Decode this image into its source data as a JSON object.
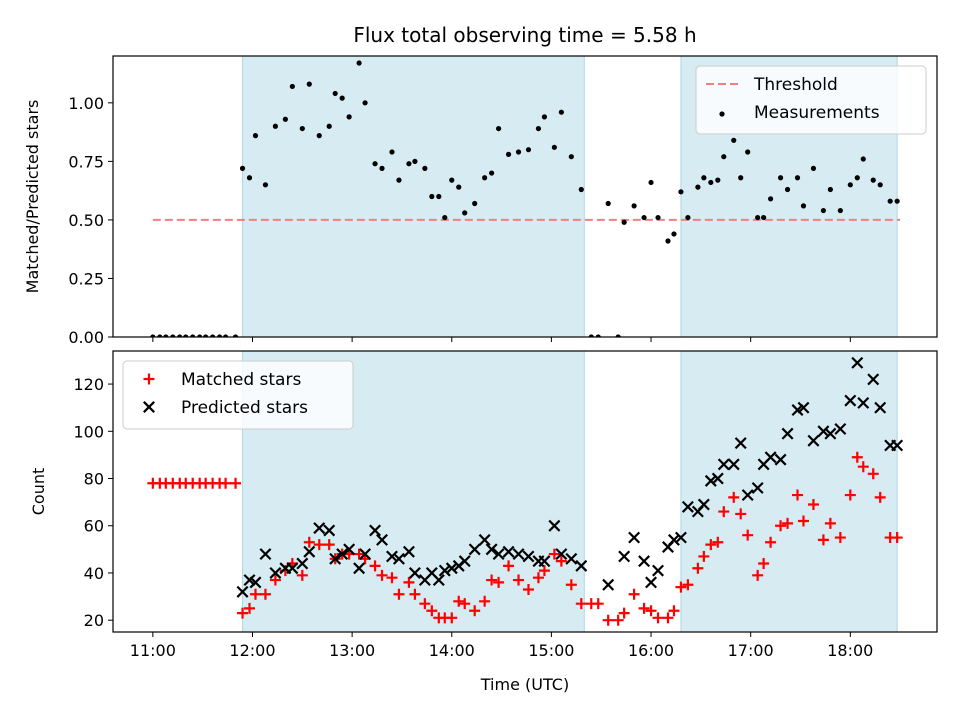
{
  "chart_data": [
    {
      "type": "scatter",
      "title": "Flux total observing time = 5.58 h",
      "xlabel": "",
      "ylabel": "Matched/Predicted stars",
      "ylim": [
        0,
        1.2
      ],
      "yticks": [
        "0.00",
        "0.25",
        "0.50",
        "0.75",
        "1.00"
      ],
      "ytick_values": [
        0,
        0.25,
        0.5,
        0.75,
        1.0
      ],
      "xlim": [
        10.6,
        18.87
      ],
      "threshold": 0.5,
      "shaded_intervals": [
        [
          11.9,
          15.33
        ],
        [
          16.3,
          18.47
        ]
      ],
      "legend_placement": "top-right",
      "legend": [
        {
          "label": "Threshold",
          "marker": "dashed-line",
          "color": "#f08080"
        },
        {
          "label": "Measurements",
          "marker": "dot",
          "color": "#000000"
        }
      ],
      "series": [
        {
          "name": "Measurements",
          "x": [
            11.0,
            11.07,
            11.13,
            11.2,
            11.27,
            11.33,
            11.4,
            11.47,
            11.53,
            11.6,
            11.67,
            11.73,
            11.83,
            11.9,
            11.97,
            12.03,
            12.13,
            12.23,
            12.33,
            12.4,
            12.5,
            12.57,
            12.67,
            12.77,
            12.83,
            12.9,
            12.97,
            13.07,
            13.13,
            13.23,
            13.3,
            13.4,
            13.47,
            13.57,
            13.63,
            13.73,
            13.8,
            13.87,
            13.93,
            14.0,
            14.07,
            14.13,
            14.23,
            14.33,
            14.4,
            14.47,
            14.57,
            14.67,
            14.77,
            14.87,
            14.93,
            15.03,
            15.1,
            15.2,
            15.3,
            15.4,
            15.47,
            15.57,
            15.67,
            15.73,
            15.83,
            15.93,
            16.0,
            16.07,
            16.17,
            16.23,
            16.3,
            16.37,
            16.47,
            16.53,
            16.6,
            16.67,
            16.73,
            16.83,
            16.9,
            16.97,
            17.07,
            17.13,
            17.2,
            17.3,
            17.37,
            17.47,
            17.53,
            17.63,
            17.73,
            17.8,
            17.9,
            18.0,
            18.07,
            18.13,
            18.23,
            18.3,
            18.4,
            18.47
          ],
          "y": [
            0,
            0,
            0,
            0,
            0,
            0,
            0,
            0,
            0,
            0,
            0,
            0,
            0,
            0.72,
            0.68,
            0.86,
            0.65,
            0.9,
            0.93,
            1.07,
            0.89,
            1.08,
            0.86,
            0.9,
            1.04,
            1.02,
            0.94,
            1.17,
            1.0,
            0.74,
            0.72,
            0.79,
            0.67,
            0.74,
            0.75,
            0.72,
            0.6,
            0.6,
            0.51,
            0.67,
            0.64,
            0.53,
            0.57,
            0.68,
            0.7,
            0.89,
            0.78,
            0.79,
            0.8,
            0.89,
            0.94,
            0.81,
            0.96,
            0.77,
            0.63,
            0,
            0,
            0.57,
            0,
            0.49,
            0.56,
            0.51,
            0.66,
            0.51,
            0.41,
            0.44,
            0.62,
            0.51,
            0.64,
            0.68,
            0.66,
            0.67,
            0.77,
            0.84,
            0.68,
            0.79,
            0.51,
            0.51,
            0.59,
            0.68,
            0.63,
            0.68,
            0.56,
            0.72,
            0.54,
            0.63,
            0.54,
            0.65,
            0.68,
            0.76,
            0.67,
            0.65,
            0.58,
            0.58
          ]
        }
      ]
    },
    {
      "type": "scatter",
      "title": "",
      "xlabel": "Time (UTC)",
      "ylabel": "Count",
      "ylim": [
        15,
        134
      ],
      "yticks": [
        "20",
        "40",
        "60",
        "80",
        "100",
        "120"
      ],
      "ytick_values": [
        20,
        40,
        60,
        80,
        100,
        120
      ],
      "xlim": [
        10.6,
        18.87
      ],
      "xticks": [
        "11:00",
        "12:00",
        "13:00",
        "14:00",
        "15:00",
        "16:00",
        "17:00",
        "18:00"
      ],
      "xtick_values": [
        11,
        12,
        13,
        14,
        15,
        16,
        17,
        18
      ],
      "shaded_intervals": [
        [
          11.9,
          15.33
        ],
        [
          16.3,
          18.47
        ]
      ],
      "legend_placement": "top-left",
      "legend": [
        {
          "label": "Matched stars",
          "marker": "plus",
          "color": "#ff0000"
        },
        {
          "label": "Predicted stars",
          "marker": "x",
          "color": "#000000"
        }
      ],
      "series": [
        {
          "name": "Matched stars",
          "x": [
            11.0,
            11.07,
            11.13,
            11.2,
            11.27,
            11.33,
            11.4,
            11.47,
            11.53,
            11.6,
            11.67,
            11.73,
            11.83,
            11.9,
            11.97,
            12.03,
            12.13,
            12.23,
            12.33,
            12.4,
            12.5,
            12.57,
            12.67,
            12.77,
            12.83,
            12.9,
            12.97,
            13.07,
            13.13,
            13.23,
            13.3,
            13.4,
            13.47,
            13.57,
            13.63,
            13.73,
            13.8,
            13.87,
            13.93,
            14.0,
            14.07,
            14.13,
            14.23,
            14.33,
            14.4,
            14.47,
            14.57,
            14.67,
            14.77,
            14.87,
            14.93,
            15.03,
            15.1,
            15.2,
            15.3,
            15.4,
            15.47,
            15.57,
            15.67,
            15.73,
            15.83,
            15.93,
            16.0,
            16.07,
            16.17,
            16.23,
            16.3,
            16.37,
            16.47,
            16.53,
            16.6,
            16.67,
            16.73,
            16.83,
            16.9,
            16.97,
            17.07,
            17.13,
            17.2,
            17.3,
            17.37,
            17.47,
            17.53,
            17.63,
            17.73,
            17.8,
            17.9,
            18.0,
            18.07,
            18.13,
            18.23,
            18.3,
            18.4,
            18.47
          ],
          "y": [
            78,
            78,
            78,
            78,
            78,
            78,
            78,
            78,
            78,
            78,
            78,
            78,
            78,
            23,
            25,
            31,
            31,
            37,
            41,
            44,
            39,
            53,
            52,
            52,
            46,
            48,
            48,
            48,
            46,
            43,
            39,
            38,
            31,
            36,
            31,
            27,
            24,
            21,
            21,
            21,
            28,
            27,
            24,
            28,
            37,
            36,
            43,
            37,
            33,
            38,
            41,
            48,
            45,
            35,
            27,
            27,
            27,
            20,
            20,
            23,
            31,
            25,
            24,
            21,
            21,
            24,
            34,
            35,
            42,
            47,
            52,
            53,
            66,
            72,
            65,
            56,
            39,
            44,
            53,
            60,
            61,
            73,
            62,
            69,
            54,
            61,
            55,
            73,
            89,
            85,
            82,
            72,
            55,
            55
          ]
        },
        {
          "name": "Predicted stars",
          "x": [
            11.9,
            11.97,
            12.03,
            12.13,
            12.23,
            12.33,
            12.4,
            12.5,
            12.57,
            12.67,
            12.77,
            12.83,
            12.9,
            12.97,
            13.07,
            13.13,
            13.23,
            13.3,
            13.4,
            13.47,
            13.57,
            13.63,
            13.73,
            13.8,
            13.87,
            13.93,
            14.0,
            14.07,
            14.13,
            14.23,
            14.33,
            14.4,
            14.47,
            14.57,
            14.67,
            14.77,
            14.87,
            14.93,
            15.03,
            15.1,
            15.2,
            15.3,
            15.57,
            15.73,
            15.83,
            15.93,
            16.0,
            16.07,
            16.17,
            16.23,
            16.3,
            16.37,
            16.47,
            16.53,
            16.6,
            16.67,
            16.73,
            16.83,
            16.9,
            16.97,
            17.07,
            17.13,
            17.2,
            17.3,
            17.37,
            17.47,
            17.53,
            17.63,
            17.73,
            17.8,
            17.9,
            18.0,
            18.07,
            18.13,
            18.23,
            18.3,
            18.4,
            18.47
          ],
          "y": [
            32,
            37,
            36,
            48,
            40,
            42,
            42,
            44,
            49,
            59,
            58,
            46,
            48,
            50,
            42,
            48,
            58,
            54,
            47,
            46,
            49,
            40,
            37,
            40,
            37,
            41,
            42,
            43,
            45,
            50,
            54,
            50,
            48,
            49,
            48,
            47,
            45,
            45,
            60,
            48,
            46,
            43,
            35,
            47,
            55,
            45,
            36,
            41,
            51,
            54,
            55,
            68,
            66,
            69,
            79,
            80,
            86,
            86,
            95,
            73,
            76,
            86,
            89,
            88,
            99,
            109,
            110,
            96,
            100,
            99,
            101,
            113,
            129,
            112,
            122,
            110,
            94,
            94
          ]
        }
      ]
    }
  ]
}
